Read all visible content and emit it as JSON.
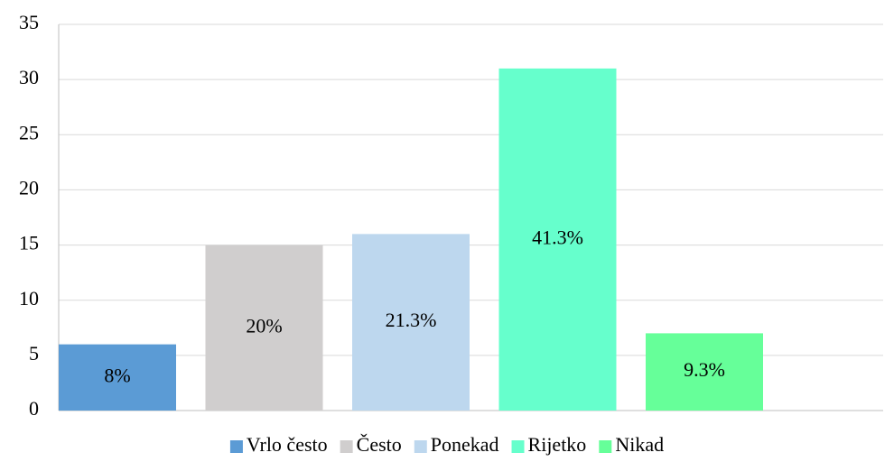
{
  "chart_data": {
    "type": "bar",
    "series": [
      {
        "name": "Vrlo često",
        "color": "#5b9bd5",
        "values": [
          6
        ],
        "value_labels": [
          "8%"
        ]
      },
      {
        "name": "Često",
        "color": "#d0cece",
        "values": [
          15
        ],
        "value_labels": [
          "20%"
        ]
      },
      {
        "name": "Ponekad",
        "color": "#bdd7ee",
        "values": [
          16
        ],
        "value_labels": [
          "21.3%"
        ]
      },
      {
        "name": "Rijetko",
        "color": "#66ffcc",
        "values": [
          31
        ],
        "value_labels": [
          "41.3%"
        ]
      },
      {
        "name": "Nikad",
        "color": "#66ff99",
        "values": [
          7
        ],
        "value_labels": [
          "9.3%"
        ]
      }
    ],
    "ylim": [
      0,
      35
    ],
    "yticks": [
      0,
      5,
      10,
      15,
      20,
      25,
      30,
      35
    ],
    "grid": true,
    "legend": "bottom"
  }
}
